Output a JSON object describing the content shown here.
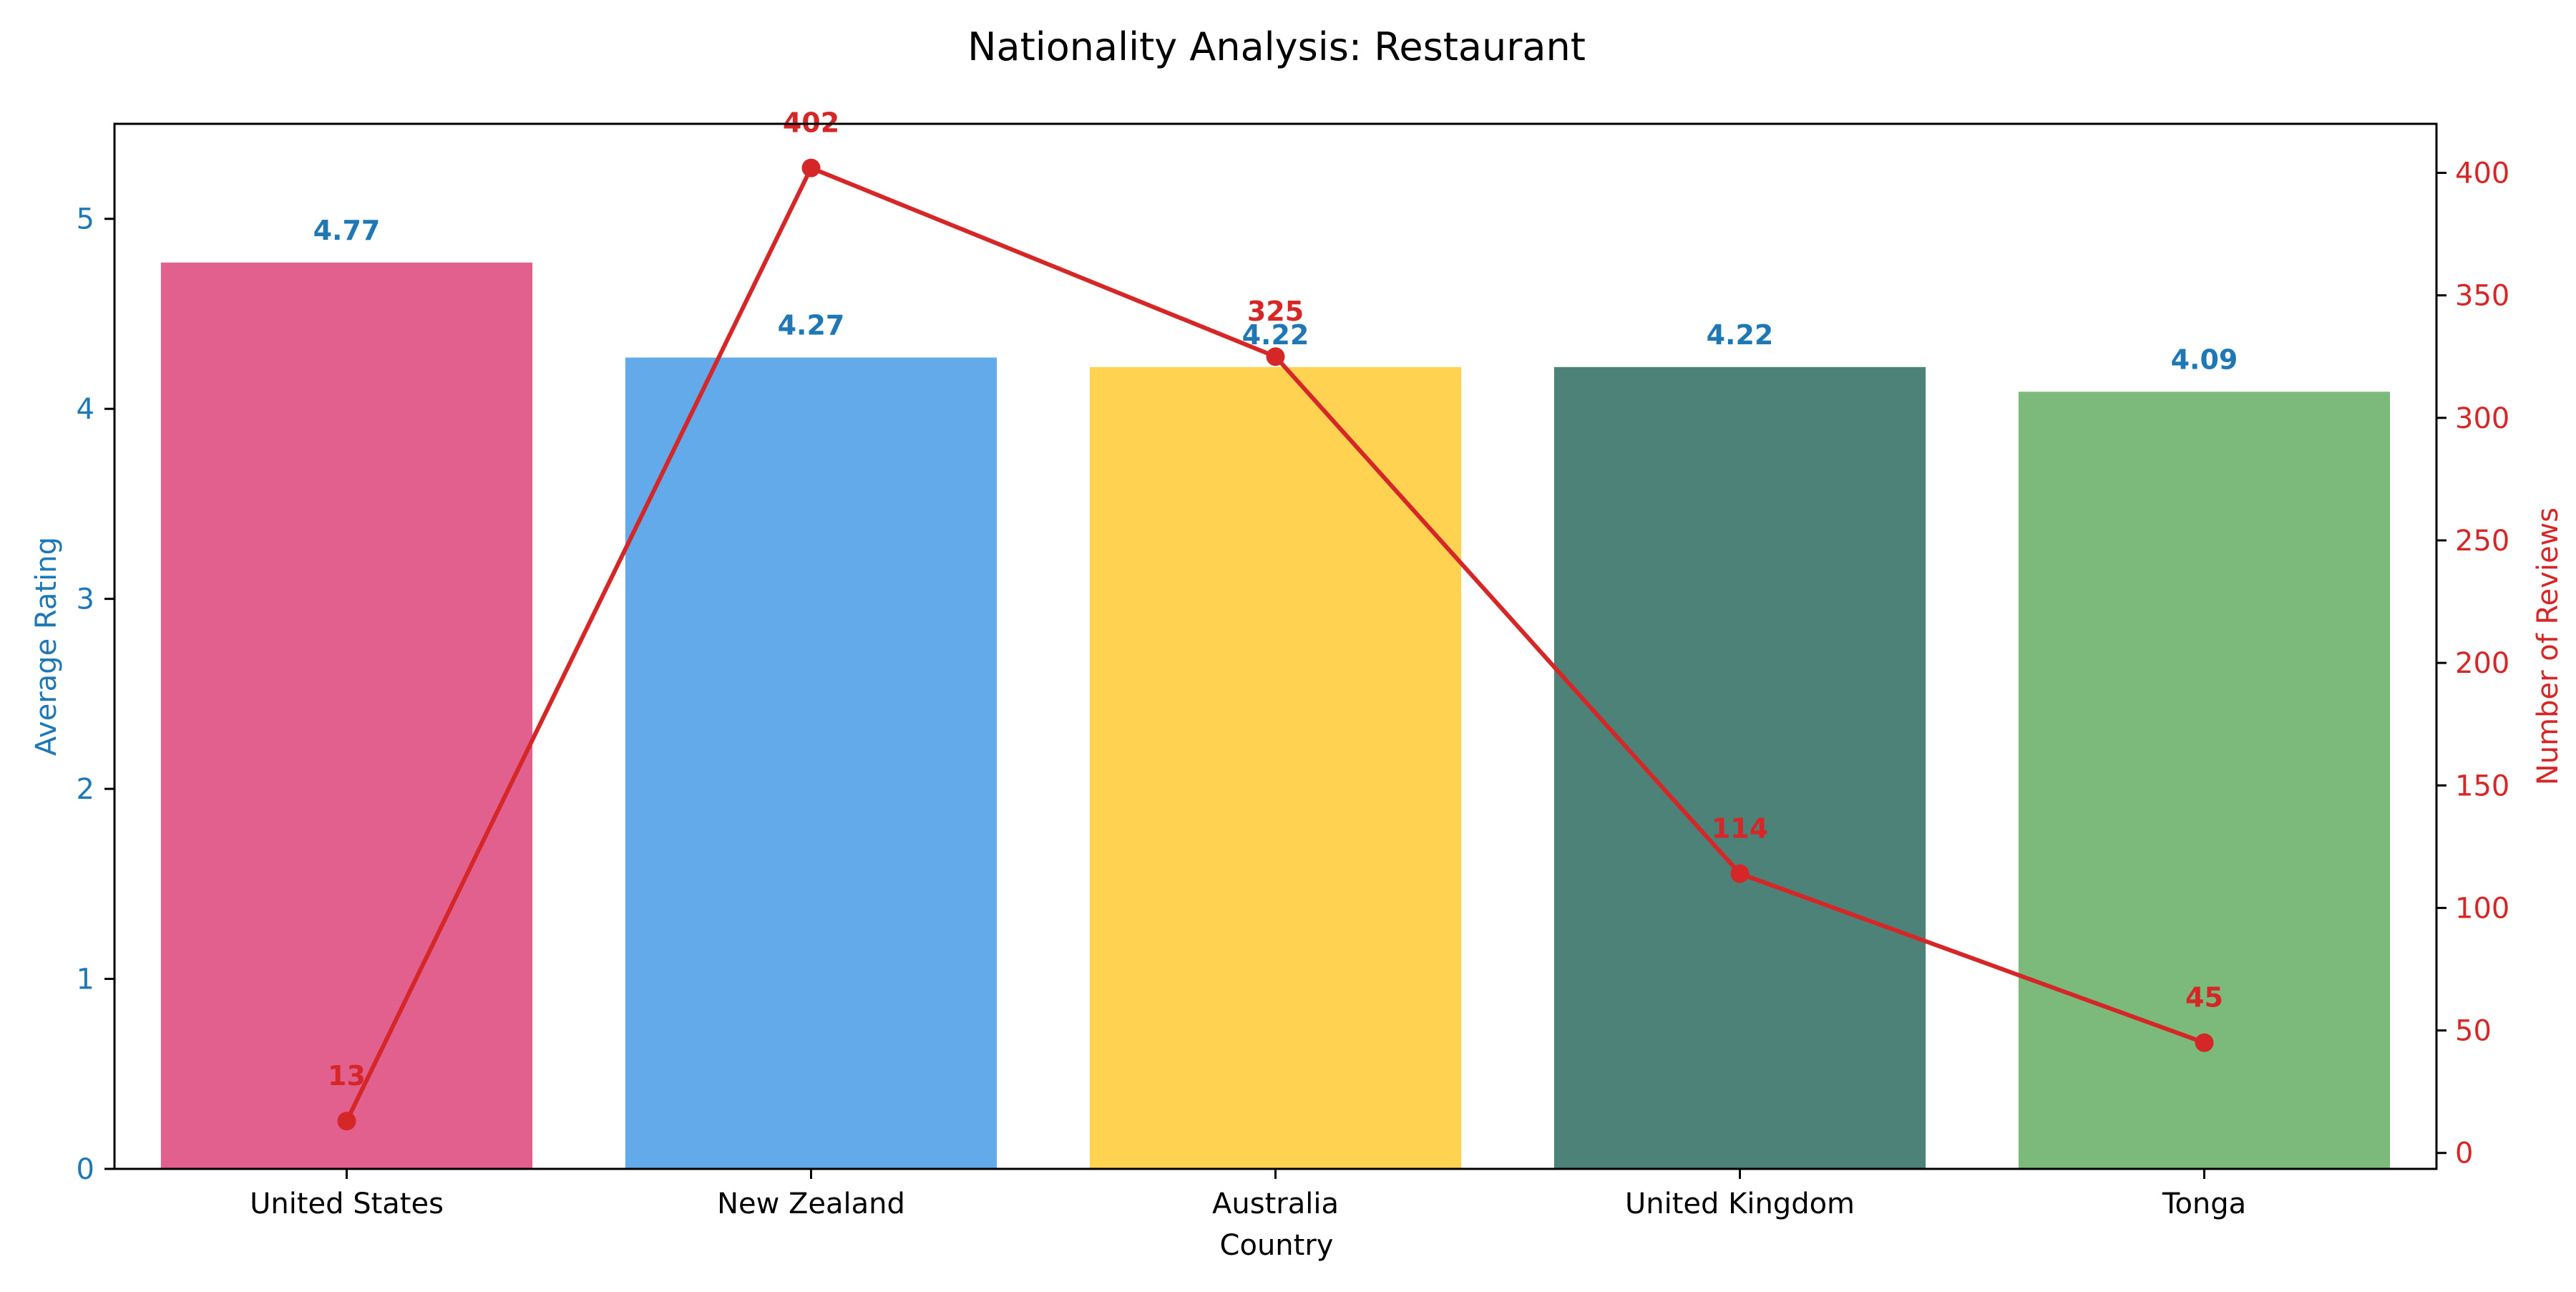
{
  "chart_data": {
    "type": "bar",
    "title": "Nationality Analysis: Restaurant",
    "xlabel": "Country",
    "ylabel": "Average Rating",
    "y2label": "Number of Reviews",
    "categories": [
      "United States",
      "New Zealand",
      "Australia",
      "United Kingdom",
      "Tonga"
    ],
    "ylim": [
      0,
      5.5
    ],
    "y2lim": [
      -6.5,
      420
    ],
    "yticks": [
      0,
      1,
      2,
      3,
      4,
      5
    ],
    "y2ticks": [
      0,
      50,
      100,
      150,
      200,
      250,
      300,
      350,
      400
    ],
    "series": [
      {
        "type": "bar",
        "axis": "left",
        "values": [
          4.77,
          4.27,
          4.22,
          4.22,
          4.09
        ],
        "labels": [
          "4.77",
          "4.27",
          "4.22",
          "4.22",
          "4.09"
        ],
        "colors": [
          "#e2608d",
          "#62aae9",
          "#ffd251",
          "#4d8279",
          "#7cba7c"
        ]
      },
      {
        "type": "line",
        "axis": "right",
        "values": [
          13,
          402,
          325,
          114,
          45
        ],
        "labels": [
          "13",
          "402",
          "325",
          "114",
          "45"
        ],
        "color": "#d62728"
      }
    ],
    "left_axis_color": "#1f77b4",
    "right_axis_color": "#d62728",
    "grid": false,
    "legend": "none"
  }
}
